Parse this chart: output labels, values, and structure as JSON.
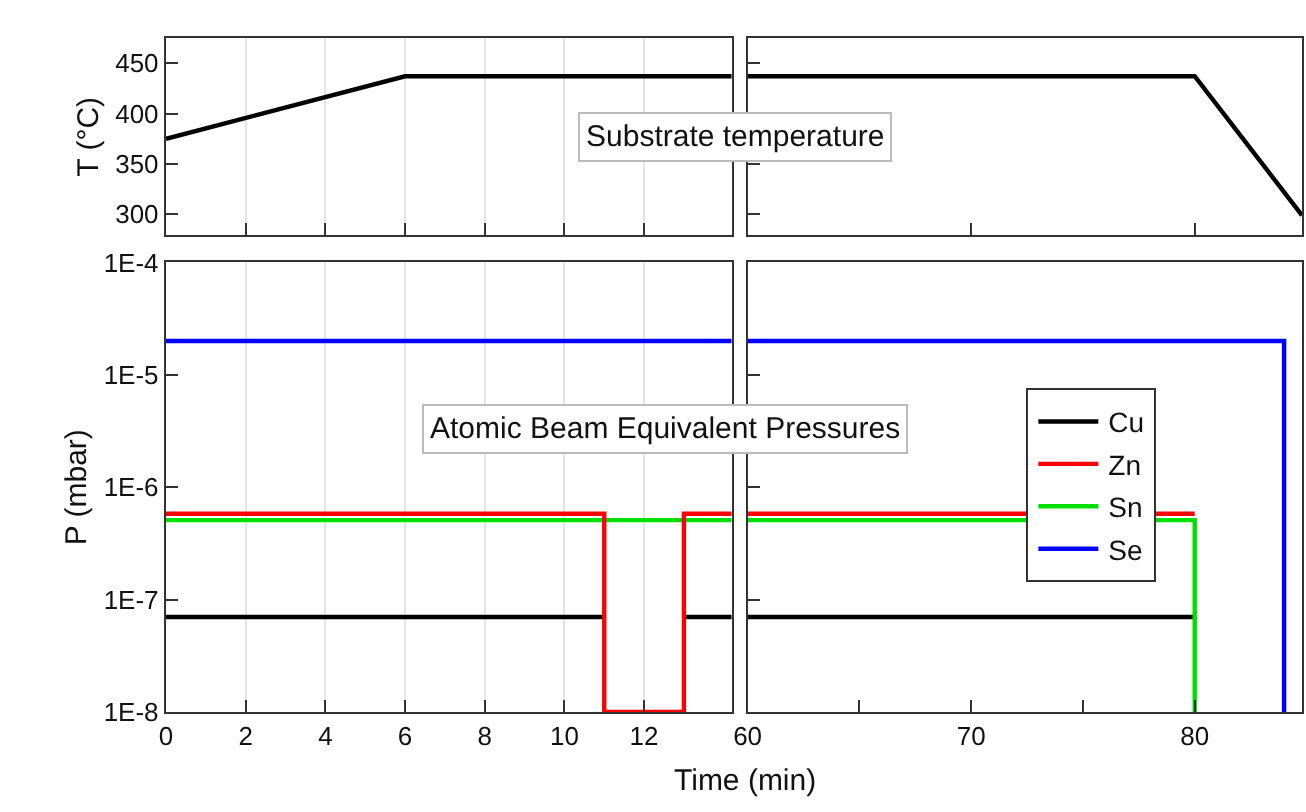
{
  "chart_data": [
    {
      "type": "line",
      "ylabel": "T (°C)",
      "annotations": [
        "Substrate temperature"
      ],
      "xlim": [
        0,
        14.2
      ],
      "xticks": [
        0,
        2,
        4,
        6,
        8,
        10,
        12
      ],
      "ylim": [
        279,
        475
      ],
      "yticks": [
        300,
        350,
        400,
        450
      ],
      "grid": "x",
      "tick_labels": "y",
      "series": [
        {
          "color": "#000000",
          "x": [
            0,
            6,
            14.2
          ],
          "values": [
            375,
            437,
            437
          ]
        }
      ]
    },
    {
      "type": "line",
      "xlim": [
        60,
        84.8
      ],
      "xticks": [
        60,
        70,
        80
      ],
      "ylim": [
        279,
        475
      ],
      "yticks": [
        300,
        350,
        400,
        450
      ],
      "tick_labels": false,
      "series": [
        {
          "color": "#000000",
          "x": [
            60,
            80,
            84.8
          ],
          "values": [
            437,
            437,
            299
          ]
        }
      ]
    },
    {
      "type": "line",
      "ylabel": "P (mbar)",
      "annotations": [
        "Atomic Beam Equivalent Pressures"
      ],
      "log": "y",
      "xlim": [
        0,
        14.2
      ],
      "xticks": [
        0,
        2,
        4,
        6,
        8,
        10,
        12
      ],
      "ylim": [
        1e-08,
        0.0001
      ],
      "yticks": [
        {
          "value": 1e-08,
          "label": "1E-8"
        },
        {
          "value": 1e-07,
          "label": "1E-7"
        },
        {
          "value": 1e-06,
          "label": "1E-6"
        },
        {
          "value": 1e-05,
          "label": "1E-5"
        },
        {
          "value": 0.0001,
          "label": "1E-4"
        }
      ],
      "grid": "x",
      "series": [
        {
          "color": "#0000ff",
          "x": [
            0,
            14.2
          ],
          "values": [
            2e-05,
            2e-05
          ]
        },
        {
          "color": "#000000",
          "x": [
            0,
            11
          ],
          "values": [
            7e-08,
            7e-08
          ]
        },
        {
          "color": "#000000",
          "x": [
            13,
            14.2
          ],
          "values": [
            7e-08,
            7e-08
          ]
        },
        {
          "color": "#00e000",
          "x": [
            0,
            14.2
          ],
          "values": [
            5.1e-07,
            5.1e-07
          ]
        },
        {
          "color": "#ff0000",
          "x": [
            0,
            11,
            11,
            13,
            13,
            14.2
          ],
          "values": [
            5.8e-07,
            5.8e-07,
            1e-08,
            1e-08,
            5.8e-07,
            5.8e-07
          ]
        }
      ]
    },
    {
      "type": "line",
      "xlabel": "Time (min)",
      "log": "y",
      "xlim": [
        60,
        84.8
      ],
      "xticks": [
        60,
        {
          "value": 65,
          "label": null
        },
        70,
        {
          "value": 75,
          "label": null
        },
        80
      ],
      "ylim": [
        1e-08,
        0.0001
      ],
      "yticks": [
        {
          "value": 1e-08,
          "label": null
        },
        {
          "value": 1e-07,
          "label": null
        },
        {
          "value": 1e-06,
          "label": null
        },
        {
          "value": 1e-05,
          "label": null
        },
        {
          "value": 0.0001,
          "label": null
        }
      ],
      "tick_labels": "x",
      "legend": "top",
      "series": [
        {
          "name": "Cu",
          "color": "#000000",
          "x": [
            60,
            80
          ],
          "values": [
            7e-08,
            7e-08
          ]
        },
        {
          "name": "Zn",
          "color": "#ff0000",
          "x": [
            60,
            80
          ],
          "values": [
            5.8e-07,
            5.8e-07
          ]
        },
        {
          "name": "Sn",
          "color": "#00e000",
          "x": [
            60,
            80,
            80
          ],
          "values": [
            5.1e-07,
            5.1e-07,
            1e-08
          ]
        },
        {
          "name": "Se",
          "color": "#0000ff",
          "x": [
            60,
            84,
            84
          ],
          "values": [
            2e-05,
            2e-05,
            1e-08
          ]
        }
      ]
    }
  ]
}
